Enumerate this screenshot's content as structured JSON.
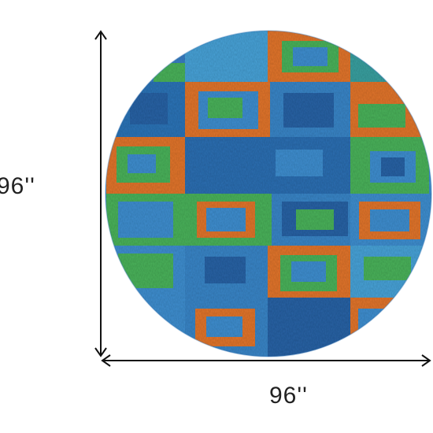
{
  "dimensions": {
    "height_label": "96''",
    "width_label": "96''"
  },
  "product": {
    "shape": "round-rug",
    "palette": {
      "blue": "#3f8fd0",
      "deep_blue": "#2c63a6",
      "orange": "#e2762f",
      "green": "#4cb35c",
      "arrow": "#111111"
    }
  }
}
